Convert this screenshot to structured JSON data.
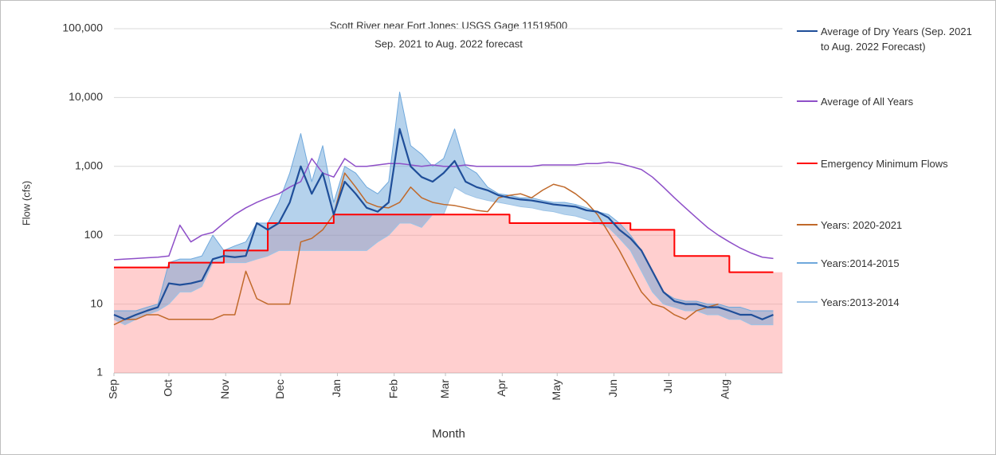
{
  "chart_data": {
    "type": "line",
    "title": "Scott River near Fort Jones: USGS Gage 11519500",
    "subtitle": "Sep. 2021 to Aug. 2022 forecast",
    "x_label": "Month",
    "y_label": "Flow (cfs)",
    "log_y": true,
    "grid": true,
    "legend_position": "right",
    "xlim": [
      0,
      365
    ],
    "xticks": [
      {
        "value": 0,
        "label": "Sep"
      },
      {
        "value": 30,
        "label": "Oct"
      },
      {
        "value": 61,
        "label": "Nov"
      },
      {
        "value": 91,
        "label": "Dec"
      },
      {
        "value": 122,
        "label": "Jan"
      },
      {
        "value": 153,
        "label": "Feb"
      },
      {
        "value": 181,
        "label": "Mar"
      },
      {
        "value": 212,
        "label": "Apr"
      },
      {
        "value": 242,
        "label": "May"
      },
      {
        "value": 273,
        "label": "Jun"
      },
      {
        "value": 303,
        "label": "Jul"
      },
      {
        "value": 334,
        "label": "Aug"
      }
    ],
    "ylim": [
      1,
      100000
    ],
    "yticks": [
      1,
      10,
      100,
      {
        "value": 1000,
        "label": "1,000"
      },
      {
        "value": 10000,
        "label": "10,000"
      },
      {
        "value": 100000,
        "label": "100,000"
      }
    ],
    "x": [
      0,
      6,
      12,
      18,
      24,
      30,
      36,
      42,
      48,
      54,
      60,
      66,
      72,
      78,
      84,
      90,
      96,
      102,
      108,
      114,
      120,
      126,
      132,
      138,
      144,
      150,
      156,
      162,
      168,
      174,
      180,
      186,
      192,
      198,
      204,
      210,
      216,
      222,
      228,
      234,
      240,
      246,
      252,
      258,
      264,
      270,
      276,
      282,
      288,
      294,
      300,
      306,
      312,
      318,
      324,
      330,
      336,
      342,
      348,
      354,
      360
    ],
    "series": [
      {
        "name": "Average of Dry Years (Sep. 2021 to Aug. 2022 Forecast)",
        "color": "#1f4e99",
        "width": 2.2,
        "values": [
          7,
          6,
          7,
          8,
          9,
          20,
          19,
          20,
          22,
          45,
          50,
          48,
          50,
          150,
          120,
          150,
          300,
          1000,
          400,
          800,
          200,
          600,
          400,
          250,
          220,
          300,
          3500,
          1000,
          700,
          600,
          800,
          1200,
          600,
          500,
          450,
          380,
          350,
          330,
          320,
          300,
          280,
          270,
          260,
          230,
          220,
          180,
          120,
          90,
          60,
          30,
          15,
          11,
          10,
          10,
          9,
          9,
          8,
          7,
          7,
          6,
          7
        ]
      },
      {
        "name": "Average of All Years",
        "color": "#8e4fc8",
        "width": 1.5,
        "values": [
          44,
          45,
          46,
          47,
          48,
          50,
          140,
          80,
          100,
          110,
          150,
          200,
          250,
          300,
          350,
          400,
          500,
          600,
          1300,
          800,
          700,
          1300,
          1000,
          1000,
          1050,
          1100,
          1100,
          1050,
          1000,
          1050,
          1000,
          1000,
          1050,
          1000,
          1000,
          1000,
          1000,
          1000,
          1000,
          1050,
          1050,
          1050,
          1050,
          1100,
          1100,
          1150,
          1100,
          1000,
          900,
          700,
          500,
          350,
          250,
          180,
          130,
          100,
          80,
          65,
          55,
          48,
          46
        ]
      },
      {
        "name": "Emergency Minimum Flows",
        "color": "#ff0000",
        "width": 2,
        "step": true,
        "fill": "rgba(255,140,140,0.42)",
        "values": [
          34,
          34,
          34,
          34,
          34,
          40,
          40,
          40,
          40,
          40,
          60,
          60,
          60,
          60,
          150,
          150,
          150,
          150,
          150,
          150,
          200,
          200,
          200,
          200,
          200,
          200,
          200,
          200,
          200,
          200,
          200,
          200,
          200,
          200,
          200,
          200,
          150,
          150,
          150,
          150,
          150,
          150,
          150,
          150,
          150,
          150,
          150,
          120,
          120,
          120,
          120,
          50,
          50,
          50,
          50,
          50,
          29,
          29,
          29,
          29,
          29
        ]
      },
      {
        "name": "Years: 2020-2021",
        "color": "#c0692a",
        "width": 1.5,
        "values": [
          5,
          6,
          6,
          7,
          7,
          6,
          6,
          6,
          6,
          6,
          7,
          7,
          30,
          12,
          10,
          10,
          10,
          80,
          90,
          120,
          200,
          800,
          500,
          300,
          260,
          250,
          300,
          500,
          350,
          300,
          280,
          270,
          250,
          230,
          220,
          350,
          380,
          400,
          350,
          450,
          550,
          500,
          400,
          300,
          200,
          110,
          60,
          30,
          15,
          10,
          9,
          7,
          6,
          8,
          9,
          10,
          null,
          null,
          null,
          null,
          null
        ]
      },
      {
        "name": "Years:2014-2015",
        "color": "#6fa8dc",
        "width": 1,
        "values": [
          8,
          8,
          8,
          9,
          10,
          40,
          45,
          45,
          50,
          100,
          60,
          70,
          80,
          150,
          150,
          300,
          800,
          3000,
          600,
          2000,
          300,
          1000,
          800,
          500,
          400,
          600,
          12000,
          2000,
          1500,
          1000,
          1300,
          3500,
          1000,
          800,
          500,
          400,
          380,
          350,
          350,
          320,
          300,
          300,
          280,
          250,
          220,
          200,
          150,
          100,
          60,
          30,
          15,
          12,
          11,
          11,
          10,
          10,
          9,
          9,
          8,
          8,
          8
        ]
      },
      {
        "name": "Years:2013-2014",
        "color": "#9dc3e6",
        "width": 1,
        "values": [
          6,
          5,
          6,
          7,
          8,
          10,
          15,
          15,
          18,
          40,
          40,
          40,
          40,
          45,
          50,
          60,
          60,
          60,
          60,
          60,
          60,
          60,
          60,
          60,
          80,
          100,
          150,
          150,
          130,
          200,
          200,
          500,
          400,
          350,
          320,
          300,
          280,
          260,
          250,
          230,
          220,
          200,
          190,
          170,
          150,
          130,
          90,
          60,
          30,
          15,
          10,
          9,
          8,
          8,
          7,
          7,
          6,
          6,
          5,
          5,
          5
        ]
      }
    ]
  }
}
